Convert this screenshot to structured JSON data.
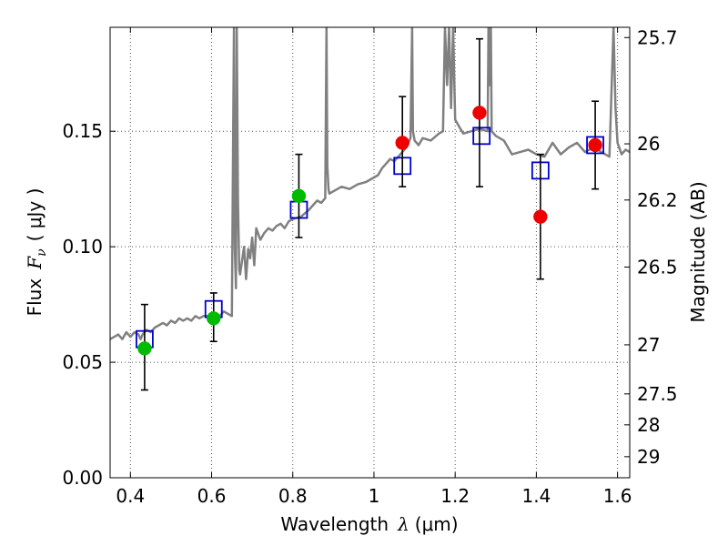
{
  "chart_data": {
    "type": "scatter",
    "xlabel_prefix": "Wavelength",
    "xlabel_math": "λ",
    "xlabel_unit": "(μm)",
    "ylabel_prefix": "Flux",
    "ylabel_math": "F",
    "ylabel_sub": "ν",
    "ylabel_unit": "( μJy )",
    "y2label": "Magnitude (AB)",
    "xlim": [
      0.35,
      1.63
    ],
    "ylim": [
      0.0,
      0.195
    ],
    "grid": true,
    "x_ticks": [
      {
        "value": 0.4,
        "label": "0.4"
      },
      {
        "value": 0.6,
        "label": "0.6"
      },
      {
        "value": 0.8,
        "label": "0.8"
      },
      {
        "value": 1.0,
        "label": "1"
      },
      {
        "value": 1.2,
        "label": "1.2"
      },
      {
        "value": 1.4,
        "label": "1.4"
      },
      {
        "value": 1.6,
        "label": "1.6"
      }
    ],
    "y_ticks": [
      {
        "value": 0.0,
        "label": "0.00"
      },
      {
        "value": 0.05,
        "label": "0.05"
      },
      {
        "value": 0.1,
        "label": "0.10"
      },
      {
        "value": 0.15,
        "label": "0.15"
      }
    ],
    "y2_ticks": [
      {
        "value": 25.7,
        "label": "25.7"
      },
      {
        "value": 26.0,
        "label": "26"
      },
      {
        "value": 26.2,
        "label": "26.2"
      },
      {
        "value": 26.5,
        "label": "26.5"
      },
      {
        "value": 27.0,
        "label": "27"
      },
      {
        "value": 27.5,
        "label": "27.5"
      },
      {
        "value": 28.0,
        "label": "28"
      },
      {
        "value": 29.0,
        "label": "29"
      }
    ],
    "magnitude_zero_point_uJy": 3631000000,
    "colors": {
      "spectrum": "#808080",
      "model": "#0000cc",
      "green": "#00bb00",
      "red": "#ee0000",
      "errorbar": "#000000",
      "grid": "#555555"
    },
    "series": [
      {
        "name": "model spectrum",
        "kind": "line",
        "x": [
          0.35,
          0.36,
          0.37,
          0.38,
          0.39,
          0.4,
          0.41,
          0.42,
          0.425,
          0.43,
          0.44,
          0.45,
          0.46,
          0.47,
          0.48,
          0.49,
          0.5,
          0.51,
          0.52,
          0.53,
          0.54,
          0.55,
          0.56,
          0.57,
          0.58,
          0.59,
          0.6,
          0.61,
          0.62,
          0.63,
          0.64,
          0.65,
          0.652,
          0.655,
          0.657,
          0.66,
          0.662,
          0.665,
          0.668,
          0.67,
          0.68,
          0.685,
          0.69,
          0.695,
          0.7,
          0.705,
          0.71,
          0.72,
          0.73,
          0.74,
          0.75,
          0.76,
          0.77,
          0.78,
          0.79,
          0.8,
          0.82,
          0.84,
          0.85,
          0.86,
          0.87,
          0.88,
          0.883,
          0.885,
          0.888,
          0.89,
          0.9,
          0.92,
          0.94,
          0.96,
          0.98,
          1.0,
          1.01,
          1.02,
          1.03,
          1.04,
          1.05,
          1.06,
          1.07,
          1.08,
          1.09,
          1.094,
          1.096,
          1.1,
          1.11,
          1.12,
          1.14,
          1.16,
          1.17,
          1.175,
          1.18,
          1.185,
          1.19,
          1.195,
          1.2,
          1.21,
          1.22,
          1.24,
          1.26,
          1.28,
          1.282,
          1.285,
          1.288,
          1.29,
          1.3,
          1.32,
          1.34,
          1.36,
          1.38,
          1.4,
          1.42,
          1.44,
          1.46,
          1.48,
          1.5,
          1.52,
          1.54,
          1.56,
          1.58,
          1.59,
          1.595,
          1.6,
          1.61,
          1.62,
          1.63
        ],
        "y": [
          0.06,
          0.061,
          0.062,
          0.06,
          0.063,
          0.061,
          0.063,
          0.062,
          0.06,
          0.062,
          0.064,
          0.063,
          0.065,
          0.066,
          0.067,
          0.066,
          0.068,
          0.067,
          0.069,
          0.068,
          0.069,
          0.068,
          0.07,
          0.069,
          0.07,
          0.07,
          0.069,
          0.07,
          0.07,
          0.072,
          0.071,
          0.07,
          0.12,
          0.195,
          0.1,
          0.082,
          0.195,
          0.12,
          0.09,
          0.088,
          0.1,
          0.086,
          0.099,
          0.095,
          0.104,
          0.092,
          0.108,
          0.103,
          0.106,
          0.108,
          0.107,
          0.109,
          0.11,
          0.108,
          0.111,
          0.112,
          0.113,
          0.116,
          0.118,
          0.12,
          0.119,
          0.121,
          0.195,
          0.135,
          0.125,
          0.123,
          0.124,
          0.126,
          0.125,
          0.127,
          0.128,
          0.13,
          0.131,
          0.134,
          0.136,
          0.138,
          0.137,
          0.139,
          0.141,
          0.143,
          0.147,
          0.195,
          0.15,
          0.146,
          0.144,
          0.147,
          0.146,
          0.149,
          0.15,
          0.195,
          0.17,
          0.195,
          0.16,
          0.195,
          0.155,
          0.152,
          0.149,
          0.15,
          0.151,
          0.15,
          0.195,
          0.17,
          0.195,
          0.15,
          0.148,
          0.146,
          0.14,
          0.141,
          0.142,
          0.14,
          0.139,
          0.145,
          0.14,
          0.143,
          0.145,
          0.141,
          0.143,
          0.141,
          0.139,
          0.195,
          0.16,
          0.145,
          0.14,
          0.142,
          0.141
        ]
      },
      {
        "name": "model photometry",
        "kind": "open-square",
        "x": [
          0.435,
          0.605,
          0.815,
          1.07,
          1.265,
          1.41,
          1.545
        ],
        "y": [
          0.06,
          0.073,
          0.116,
          0.135,
          0.148,
          0.133,
          0.144
        ]
      },
      {
        "name": "observed (green)",
        "kind": "filled-circle",
        "x": [
          0.435,
          0.605,
          0.815
        ],
        "y": [
          0.056,
          0.069,
          0.122
        ],
        "err_low": [
          0.038,
          0.059,
          0.104
        ],
        "err_high": [
          0.075,
          0.08,
          0.14
        ]
      },
      {
        "name": "observed (red)",
        "kind": "filled-circle",
        "x": [
          1.07,
          1.26,
          1.41,
          1.545
        ],
        "y": [
          0.145,
          0.158,
          0.113,
          0.144
        ],
        "err_low": [
          0.126,
          0.126,
          0.086,
          0.125
        ],
        "err_high": [
          0.165,
          0.19,
          0.14,
          0.163
        ]
      }
    ]
  }
}
